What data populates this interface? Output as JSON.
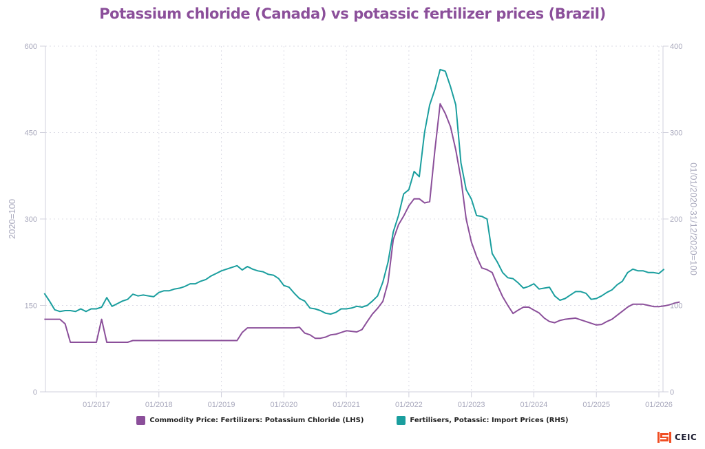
{
  "title": "Potassium chloride (Canada) vs potassic fertilizer prices (Brazil)",
  "logo": {
    "text": "CEIC",
    "icon": "ceic-logo-icon",
    "color": "#f04e23"
  },
  "chart_data": {
    "type": "line",
    "title": "Potassium chloride (Canada) vs potassic fertilizer prices (Brazil)",
    "xlabel": "",
    "ylabel_left": "2020=100",
    "ylabel_right": "01/01/2020-31/12/2020=100",
    "ylim_left": [
      0,
      600
    ],
    "ylim_right": [
      0,
      400
    ],
    "yticks_left": [
      0,
      150,
      300,
      450,
      600
    ],
    "yticks_right": [
      0,
      100,
      200,
      300,
      400
    ],
    "xticks": [
      "01/2017",
      "01/2018",
      "01/2019",
      "01/2020",
      "01/2021",
      "01/2022",
      "01/2023",
      "01/2024",
      "01/2025",
      "01/2026"
    ],
    "x_start": "03/2016",
    "x_frequency": "monthly",
    "grid": true,
    "legend_position": "bottom",
    "series": [
      {
        "name": "Commodity Price: Fertilizers: Potassium Chloride (LHS)",
        "axis": "left",
        "color": "#8b4f9a",
        "values": [
          126,
          126,
          126,
          126,
          118,
          86,
          86,
          86,
          86,
          86,
          86,
          126,
          86,
          86,
          86,
          86,
          86,
          89,
          89,
          89,
          89,
          89,
          89,
          89,
          89,
          89,
          89,
          89,
          89,
          89,
          89,
          89,
          89,
          89,
          89,
          89,
          89,
          89,
          103,
          111,
          111,
          111,
          111,
          111,
          111,
          111,
          111,
          111,
          111,
          112,
          102,
          99,
          93,
          93,
          95,
          99,
          100,
          103,
          106,
          105,
          104,
          108,
          122,
          135,
          145,
          157,
          190,
          264,
          290,
          305,
          323,
          335,
          335,
          328,
          330,
          420,
          500,
          483,
          460,
          420,
          370,
          300,
          260,
          235,
          215,
          212,
          207,
          185,
          165,
          150,
          136,
          142,
          147,
          147,
          142,
          137,
          128,
          122,
          120,
          124,
          126,
          127,
          128,
          125,
          122,
          119,
          116,
          117,
          122,
          126,
          133,
          140,
          147,
          152,
          152,
          152,
          150,
          148,
          148,
          149,
          151,
          154,
          156
        ]
      },
      {
        "name": "Fertilisers, Potassic: Import Prices (RHS)",
        "axis": "right",
        "color": "#1a9e9e",
        "values": [
          114,
          105,
          95,
          93,
          94,
          94,
          93,
          96,
          93,
          96,
          96,
          98,
          109,
          99,
          102,
          105,
          107,
          113,
          111,
          112,
          111,
          110,
          115,
          117,
          117,
          119,
          120,
          122,
          125,
          125,
          128,
          130,
          134,
          137,
          140,
          142,
          144,
          146,
          141,
          145,
          142,
          140,
          139,
          136,
          135,
          131,
          123,
          121,
          114,
          108,
          105,
          97,
          96,
          94,
          91,
          90,
          92,
          96,
          96,
          97,
          99,
          98,
          100,
          105,
          111,
          127,
          150,
          185,
          204,
          229,
          234,
          255,
          249,
          300,
          332,
          350,
          373,
          371,
          353,
          332,
          265,
          234,
          223,
          204,
          203,
          200,
          160,
          150,
          138,
          132,
          131,
          126,
          120,
          122,
          125,
          119,
          120,
          121,
          111,
          106,
          108,
          112,
          116,
          116,
          114,
          107,
          108,
          111,
          115,
          118,
          124,
          128,
          138,
          142,
          140,
          140,
          138,
          138,
          137,
          142
        ]
      }
    ]
  }
}
